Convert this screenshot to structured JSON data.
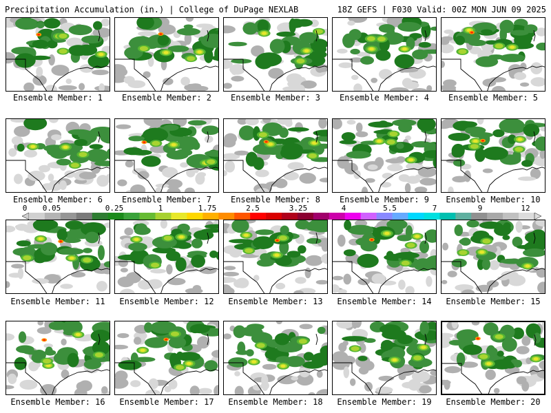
{
  "header": {
    "left": "Precipitation Accumulation (in.) | College of DuPage NEXLAB",
    "right": "18Z GEFS | F030 Valid: 00Z MON JUN 09 2025"
  },
  "colorbar": {
    "tick_labels": [
      "0",
      "0.05",
      "0.25",
      "1",
      "1.75",
      "2.5",
      "3.25",
      "4",
      "5.5",
      "7",
      "9",
      "12"
    ],
    "colors": [
      "#d0d0d0",
      "#b4b4b4",
      "#969696",
      "#7a7a7a",
      "#2e7d32",
      "#1b8a1b",
      "#3aa23a",
      "#66bb33",
      "#a7d130",
      "#e8e82a",
      "#ffd700",
      "#ffb000",
      "#ff8c00",
      "#ff5500",
      "#ff0000",
      "#d90000",
      "#b0001a",
      "#8b0030",
      "#a0006a",
      "#cc00aa",
      "#ee00ee",
      "#d060ff",
      "#8888ff",
      "#66aaff",
      "#00d8ff",
      "#00e0e0",
      "#00c0b0",
      "#60b0a0",
      "#909090",
      "#a8a8a8",
      "#c0c0c0",
      "#dcdcdc"
    ]
  },
  "members": [
    {
      "label": "Ensemble Member: 1"
    },
    {
      "label": "Ensemble Member: 2"
    },
    {
      "label": "Ensemble Member: 3"
    },
    {
      "label": "Ensemble Member: 4"
    },
    {
      "label": "Ensemble Member: 5"
    },
    {
      "label": "Ensemble Member: 6"
    },
    {
      "label": "Ensemble Member: 7"
    },
    {
      "label": "Ensemble Member: 8"
    },
    {
      "label": "Ensemble Member: 9"
    },
    {
      "label": "Ensemble Member: 10"
    },
    {
      "label": "Ensemble Member: 11"
    },
    {
      "label": "Ensemble Member: 12"
    },
    {
      "label": "Ensemble Member: 13"
    },
    {
      "label": "Ensemble Member: 14"
    },
    {
      "label": "Ensemble Member: 15"
    },
    {
      "label": "Ensemble Member: 16"
    },
    {
      "label": "Ensemble Member: 17"
    },
    {
      "label": "Ensemble Member: 18"
    },
    {
      "label": "Ensemble Member: 19"
    },
    {
      "label": "Ensemble Member: 20"
    }
  ],
  "selected_member": "Ensemble Member: 20"
}
